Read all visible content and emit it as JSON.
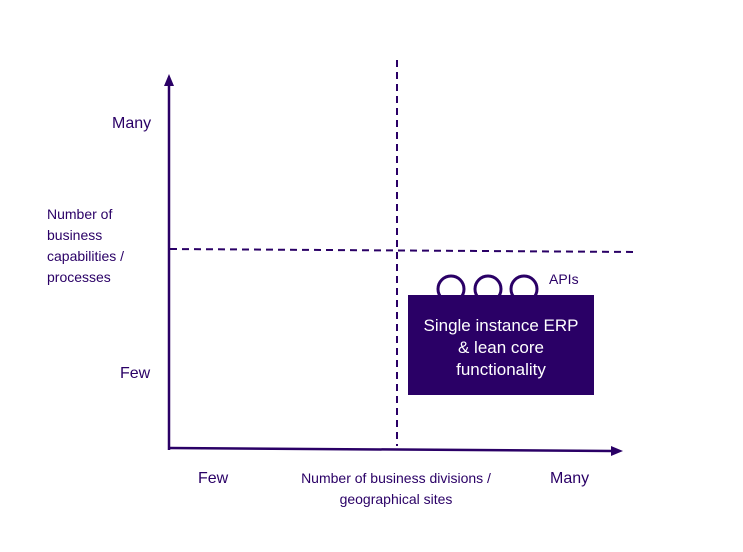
{
  "y_axis": {
    "title": "Number of business capabilities / processes",
    "high_label": "Many",
    "low_label": "Few"
  },
  "x_axis": {
    "title": "Number of business divisions / geographical sites",
    "low_label": "Few",
    "high_label": "Many"
  },
  "box": {
    "label": "Single instance ERP & lean core functionality",
    "apis_label": "APIs",
    "api_count": 3
  },
  "colors": {
    "primary": "#2a0066",
    "background": "#ffffff"
  }
}
